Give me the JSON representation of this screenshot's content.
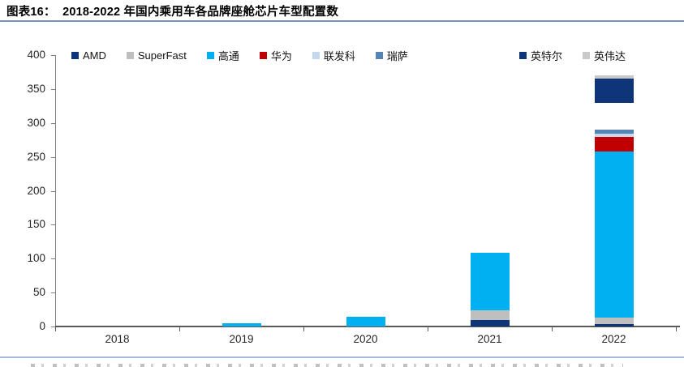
{
  "header": {
    "title": "图表16：  2018-2022 年国内乘用车各品牌座舱芯片车型配置数"
  },
  "chart_data": {
    "type": "bar",
    "stacked": true,
    "title": "2018-2022 年国内乘用车各品牌座舱芯片车型配置数",
    "categories": [
      "2018",
      "2019",
      "2020",
      "2021",
      "2022"
    ],
    "series": [
      {
        "name": "AMD",
        "color": "#0d3578",
        "in_legend": true,
        "values": [
          0,
          0,
          0,
          10,
          4
        ]
      },
      {
        "name": "SuperFast",
        "color": "#bfbfbf",
        "in_legend": true,
        "values": [
          0,
          0,
          0,
          14,
          9
        ]
      },
      {
        "name": "高通",
        "color": "#00b0f0",
        "in_legend": true,
        "values": [
          0,
          5,
          14,
          85,
          245
        ]
      },
      {
        "name": "华为",
        "color": "#c00000",
        "in_legend": true,
        "values": [
          0,
          0,
          0,
          0,
          22
        ]
      },
      {
        "name": "联发科",
        "color": "#c5d9ee",
        "in_legend": true,
        "values": [
          0,
          0,
          0,
          0,
          4
        ]
      },
      {
        "name": "瑞萨",
        "color": "#5583b4",
        "in_legend": true,
        "values": [
          0,
          0,
          0,
          0,
          6
        ]
      },
      {
        "name": "",
        "color": "#ffffff",
        "in_legend": false,
        "values": [
          0,
          0,
          0,
          0,
          40
        ]
      },
      {
        "name": "英特尔",
        "color": "#0d3578",
        "in_legend": true,
        "values": [
          0,
          0,
          0,
          0,
          35
        ]
      },
      {
        "name": "英伟达",
        "color": "#c9c9c9",
        "in_legend": true,
        "values": [
          0,
          0,
          0,
          0,
          5
        ]
      }
    ],
    "totals": {
      "2018": 0,
      "2019": 5,
      "2020": 14,
      "2021": 109,
      "2022": 370
    },
    "ylim": [
      0,
      400
    ],
    "ytick_step": 50,
    "ytick_labels": [
      "0",
      "50",
      "100",
      "150",
      "200",
      "250",
      "300",
      "350",
      "400"
    ],
    "grid": "off",
    "legend_position": "top",
    "legend_order": [
      "AMD",
      "SuperFast",
      "高通",
      "华为",
      "联发科",
      "瑞萨",
      "英特尔",
      "英伟达"
    ],
    "legend_gap_before": "英特尔"
  },
  "style": {
    "title_rule_color": "#7b90b5",
    "footer_rule_color": "#a9b9d6",
    "axis_color": "#595959",
    "yaxis_color": "#808080",
    "background": "#ffffff"
  }
}
